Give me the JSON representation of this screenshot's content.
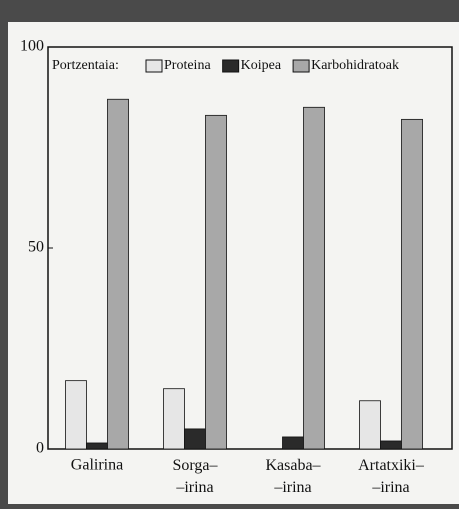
{
  "chart_data": {
    "type": "bar",
    "legend_title": "Portzentaia:",
    "categories": [
      "Galirina",
      "Sorga–\n–irina",
      "Kasaba–\n–irina",
      "Artatxiki–\n–irina"
    ],
    "series": [
      {
        "name": "Proteina",
        "color": "#e6e6e6",
        "values": [
          17,
          15,
          0,
          12
        ]
      },
      {
        "name": "Koipea",
        "color": "#2a2a2a",
        "values": [
          1.5,
          5,
          3,
          2
        ]
      },
      {
        "name": "Karbohidratoak",
        "color": "#a8a8a8",
        "values": [
          87,
          83,
          85,
          82
        ]
      }
    ],
    "ylim": [
      0,
      100
    ],
    "yticks": [
      0,
      50,
      100
    ],
    "legend": "top"
  }
}
